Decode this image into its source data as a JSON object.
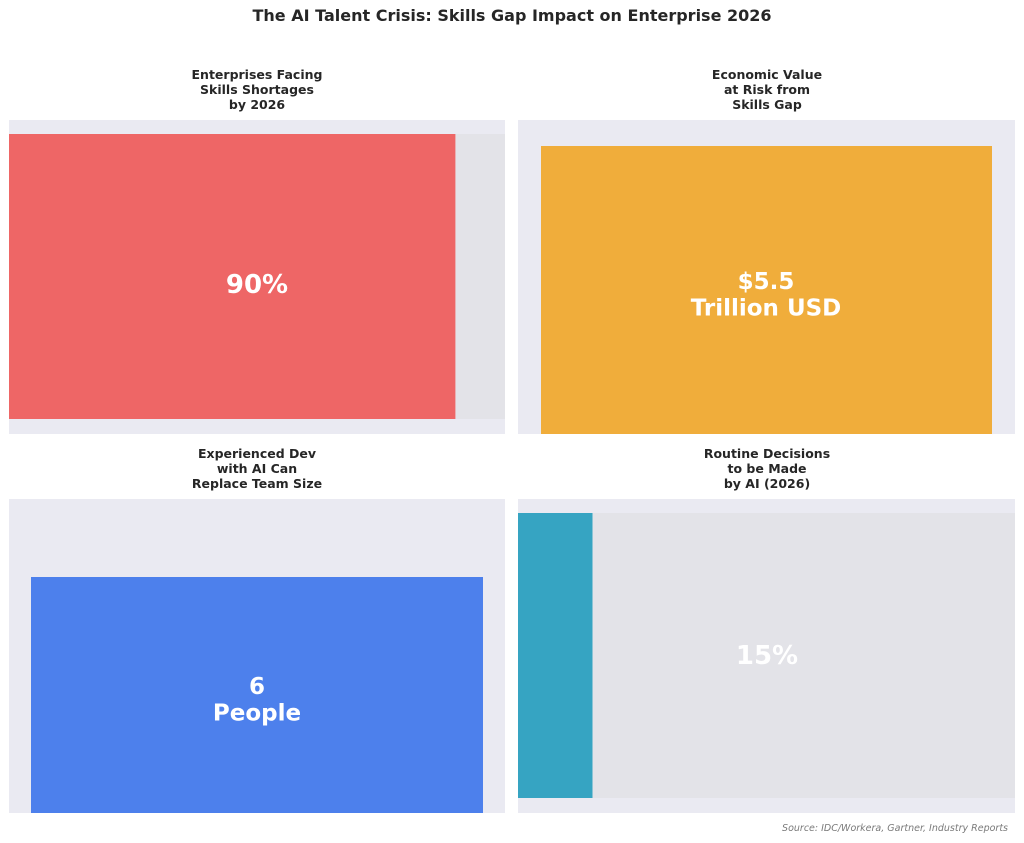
{
  "title": "The AI Talent Crisis: Skills Gap Impact on Enterprise 2026",
  "source": "Source: IDC/Workera, Gartner, Industry Reports",
  "chart_data": [
    {
      "type": "bar",
      "title": "Enterprises Facing\nSkills Shortages\nby 2026",
      "value": 90,
      "max": 100,
      "unit": "%",
      "value_label": "90%",
      "orientation": "horizontal",
      "color": "#ee6666",
      "track_color": "#e3e3e8"
    },
    {
      "type": "bar",
      "title": "Economic Value\nat Risk from\nSkills Gap",
      "value": 5.5,
      "unit": "Trillion USD",
      "value_label": "$5.5\nTrillion USD",
      "orientation": "vertical",
      "color": "#f0ad3b"
    },
    {
      "type": "bar",
      "title": "Experienced Dev\nwith AI Can\nReplace Team Size",
      "value": 6,
      "unit": "People",
      "value_label": "6\nPeople",
      "orientation": "vertical",
      "color": "#4d80ec"
    },
    {
      "type": "bar",
      "title": "Routine Decisions\nto be Made\nby AI (2026)",
      "value": 15,
      "max": 100,
      "unit": "%",
      "value_label": "15%",
      "orientation": "horizontal",
      "color": "#36a4c2",
      "track_color": "#e3e3e8"
    }
  ]
}
